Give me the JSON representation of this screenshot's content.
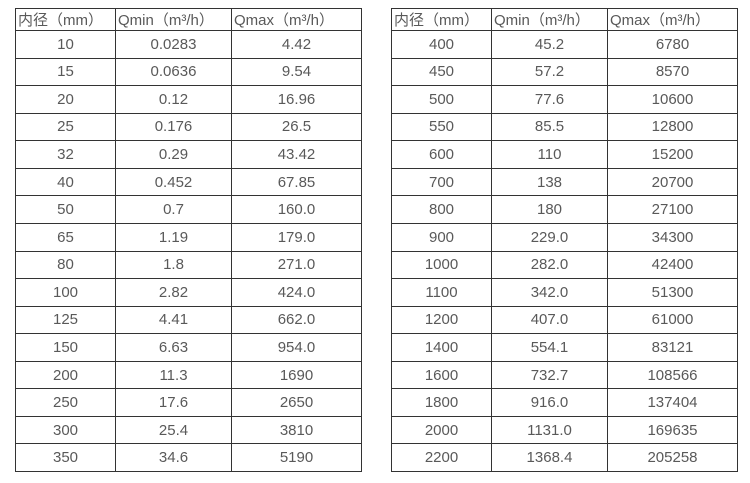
{
  "page": {
    "background_color": "#ffffff",
    "border_color": "#333333",
    "text_color": "#595959"
  },
  "tables": [
    {
      "name": "flow-table-small-diameters",
      "headers": [
        "内径（mm）",
        "Qmin（m³/h）",
        "Qmax（m³/h）"
      ],
      "rows": [
        [
          "10",
          "0.0283",
          "4.42"
        ],
        [
          "15",
          "0.0636",
          "9.54"
        ],
        [
          "20",
          "0.12",
          "16.96"
        ],
        [
          "25",
          "0.176",
          "26.5"
        ],
        [
          "32",
          "0.29",
          "43.42"
        ],
        [
          "40",
          "0.452",
          "67.85"
        ],
        [
          "50",
          "0.7",
          "160.0"
        ],
        [
          "65",
          "1.19",
          "179.0"
        ],
        [
          "80",
          "1.8",
          "271.0"
        ],
        [
          "100",
          "2.82",
          "424.0"
        ],
        [
          "125",
          "4.41",
          "662.0"
        ],
        [
          "150",
          "6.63",
          "954.0"
        ],
        [
          "200",
          "11.3",
          "1690"
        ],
        [
          "250",
          "17.6",
          "2650"
        ],
        [
          "300",
          "25.4",
          "3810"
        ],
        [
          "350",
          "34.6",
          "5190"
        ]
      ]
    },
    {
      "name": "flow-table-large-diameters",
      "headers": [
        "内径（mm）",
        "Qmin（m³/h）",
        "Qmax（m³/h）"
      ],
      "rows": [
        [
          "400",
          "45.2",
          "6780"
        ],
        [
          "450",
          "57.2",
          "8570"
        ],
        [
          "500",
          "77.6",
          "10600"
        ],
        [
          "550",
          "85.5",
          "12800"
        ],
        [
          "600",
          "110",
          "15200"
        ],
        [
          "700",
          "138",
          "20700"
        ],
        [
          "800",
          "180",
          "27100"
        ],
        [
          "900",
          "229.0",
          "34300"
        ],
        [
          "1000",
          "282.0",
          "42400"
        ],
        [
          "1100",
          "342.0",
          "51300"
        ],
        [
          "1200",
          "407.0",
          "61000"
        ],
        [
          "1400",
          "554.1",
          "83121"
        ],
        [
          "1600",
          "732.7",
          "108566"
        ],
        [
          "1800",
          "916.0",
          "137404"
        ],
        [
          "2000",
          "1131.0",
          "169635"
        ],
        [
          "2200",
          "1368.4",
          "205258"
        ]
      ]
    }
  ]
}
